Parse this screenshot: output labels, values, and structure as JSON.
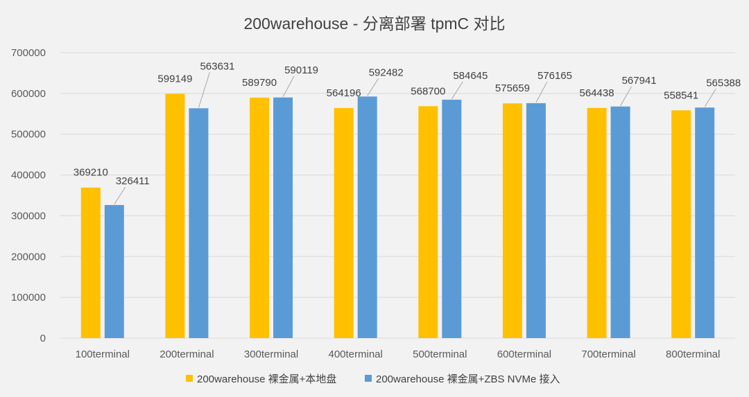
{
  "chart_data": {
    "type": "bar",
    "title": "200warehouse - 分离部署 tpmC 对比",
    "xlabel": "",
    "ylabel": "",
    "ylim": [
      0,
      700000
    ],
    "yticks": [
      0,
      100000,
      200000,
      300000,
      400000,
      500000,
      600000,
      700000
    ],
    "ytick_labels": [
      "0",
      "100000",
      "200000",
      "300000",
      "400000",
      "500000",
      "600000",
      "700000"
    ],
    "grid": true,
    "legend_position": "bottom",
    "categories": [
      "100terminal",
      "200terminal",
      "300terminal",
      "400terminal",
      "500terminal",
      "600terminal",
      "700terminal",
      "800terminal"
    ],
    "series": [
      {
        "name": "200warehouse 裸金属+本地盘",
        "color": "#ffc000",
        "values": [
          369210,
          599149,
          589790,
          564196,
          568700,
          575659,
          564438,
          558541
        ],
        "labels": [
          "369210",
          "599149",
          "589790",
          "564196",
          "568700",
          "575659",
          "564438",
          "558541"
        ]
      },
      {
        "name": "200warehouse 裸金属+ZBS NVMe 接入",
        "color": "#5b9bd5",
        "values": [
          326411,
          563631,
          590119,
          592482,
          584645,
          576165,
          567941,
          565388
        ],
        "labels": [
          "326411",
          "563631",
          "590119",
          "592482",
          "584645",
          "576165",
          "567941",
          "565388"
        ]
      }
    ]
  }
}
